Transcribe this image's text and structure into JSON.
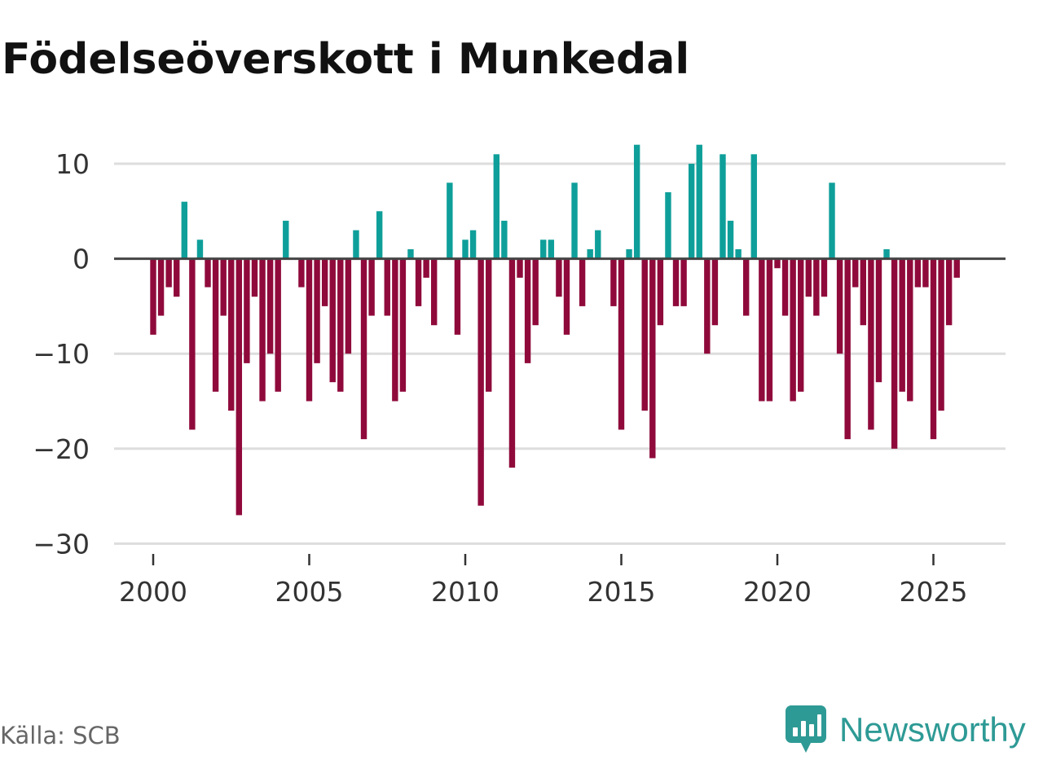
{
  "title": "Födelseöverskott i Munkedal",
  "source": "Källa: SCB",
  "brand": {
    "name": "Newsworthy",
    "icon": "newsworthy-logo-icon",
    "color": "#2e9a95"
  },
  "colors": {
    "positive": "#0f9f9a",
    "negative": "#8f0a3b",
    "zero_line": "#444444",
    "grid": "#dddddd"
  },
  "chart_data": {
    "type": "bar",
    "title": "Födelseöverskott i Munkedal",
    "xlabel": "",
    "ylabel": "",
    "frequency": "quarterly",
    "x_start": 2000.0,
    "x_step": 0.25,
    "xlim": [
      1999.5,
      2027.3
    ],
    "ylim": [
      -30,
      13
    ],
    "yticks": [
      10,
      0,
      -10,
      -20,
      -30
    ],
    "ytick_labels": [
      "10",
      "0",
      "−10",
      "−20",
      "−30"
    ],
    "xticks": [
      2000,
      2005,
      2010,
      2015,
      2020,
      2025
    ],
    "xtick_labels": [
      "2000",
      "2005",
      "2010",
      "2015",
      "2020",
      "2025"
    ],
    "grid": true,
    "values": [
      -8,
      -6,
      -3,
      -4,
      6,
      -18,
      2,
      -3,
      -14,
      -6,
      -16,
      -27,
      -11,
      -4,
      -15,
      -10,
      -14,
      4,
      0,
      -3,
      -15,
      -11,
      -5,
      -13,
      -14,
      -10,
      3,
      -19,
      -6,
      5,
      -6,
      -15,
      -14,
      1,
      -5,
      -2,
      -7,
      0,
      8,
      -8,
      2,
      3,
      -26,
      -14,
      11,
      4,
      -22,
      -2,
      -11,
      -7,
      2,
      2,
      -4,
      -8,
      8,
      -5,
      1,
      3,
      0,
      -5,
      -18,
      1,
      12,
      -16,
      -21,
      -7,
      7,
      -5,
      -5,
      10,
      12,
      -10,
      -7,
      11,
      4,
      1,
      -6,
      11,
      -15,
      -15,
      -1,
      -6,
      -15,
      -14,
      -4,
      -6,
      -4,
      8,
      -10,
      -19,
      -3,
      -7,
      -18,
      -13,
      1,
      -20,
      -14,
      -15,
      -3,
      -3,
      -19,
      -16,
      -7,
      -2
    ]
  }
}
